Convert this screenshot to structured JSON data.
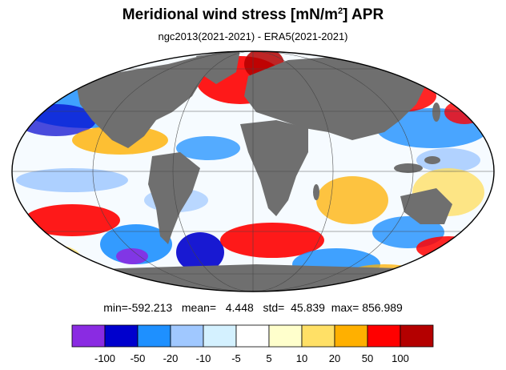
{
  "title": {
    "prefix": "Meridional wind stress [mN/m",
    "sup": "2",
    "suffix": "] APR"
  },
  "subtitle": "ngc2013(2021-2021) - ERA5(2021-2021)",
  "stats": {
    "min": "min=-592.213",
    "mean": "mean=   4.448",
    "std": "std=  45.839",
    "max": "max= 856.989"
  },
  "colorbar": {
    "colors": [
      "#8a2be2",
      "#0000cd",
      "#1e90ff",
      "#a0c8ff",
      "#d4f1ff",
      "#ffffff",
      "#ffffcc",
      "#ffe066",
      "#ffb000",
      "#ff0000",
      "#b40000"
    ],
    "tick_labels": [
      "-100",
      "-50",
      "-20",
      "-10",
      "-5",
      "5",
      "10",
      "20",
      "50",
      "100"
    ]
  },
  "map": {
    "projection": "mollweide",
    "land_color": "#6f6f6f",
    "ocean_base_color": "#ffffff",
    "graticule": "gridlines every 60° longitude and 30° latitude"
  }
}
